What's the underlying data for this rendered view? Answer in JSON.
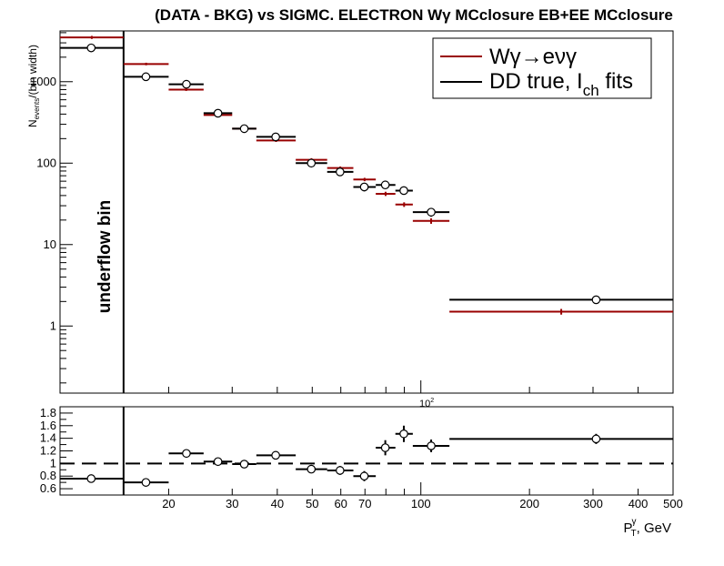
{
  "title": "(DATA - BKG) vs SIGMC. ELECTRON Wγ  MCclosure EB+EE  MCclosure",
  "chart_data": [
    {
      "type": "scatter",
      "name": "upper",
      "ylabel": "N",
      "ylabel_sub": "events",
      "ylabel_rest": "/(bin width)",
      "yscale": "log",
      "xscale": "log",
      "xlim": [
        10,
        500
      ],
      "ylim": [
        0.15,
        4200
      ],
      "y_ticks": [
        "1",
        "10",
        "100",
        "1000"
      ],
      "x_tick_label": "10",
      "x_tick_sup": "2",
      "underflow_label": "underflow bin",
      "underflow_edge": 15,
      "legend_position": "top-right",
      "legend_title_1": "Wγ→eνγ",
      "legend_title_2": "DD true, I",
      "legend_title_2_sub": "ch",
      "legend_title_2_rest": " fits",
      "series": [
        {
          "color": "#990000",
          "bins": [
            {
              "x_lo": 10,
              "x_hi": 15,
              "y": 3500,
              "err": 150
            },
            {
              "x_lo": 15,
              "x_hi": 20,
              "y": 1650,
              "err": 60
            },
            {
              "x_lo": 20,
              "x_hi": 25,
              "y": 800,
              "err": 30
            },
            {
              "x_lo": 25,
              "x_hi": 30,
              "y": 390,
              "err": 18
            },
            {
              "x_lo": 30,
              "x_hi": 35,
              "y": 265,
              "err": 12
            },
            {
              "x_lo": 35,
              "x_hi": 45,
              "y": 190,
              "err": 8
            },
            {
              "x_lo": 45,
              "x_hi": 55,
              "y": 110,
              "err": 5
            },
            {
              "x_lo": 55,
              "x_hi": 65,
              "y": 87,
              "err": 4
            },
            {
              "x_lo": 65,
              "x_hi": 75,
              "y": 63,
              "err": 3
            },
            {
              "x_lo": 75,
              "x_hi": 85,
              "y": 42,
              "err": 2.5
            },
            {
              "x_lo": 85,
              "x_hi": 95,
              "y": 31,
              "err": 2
            },
            {
              "x_lo": 95,
              "x_hi": 120,
              "y": 19.5,
              "err": 1.5
            },
            {
              "x_lo": 120,
              "x_hi": 500,
              "y": 1.5,
              "err": 0.12
            }
          ]
        },
        {
          "color": "#000000",
          "bins": [
            {
              "x_lo": 10,
              "x_hi": 15,
              "y": 2600,
              "err": 200,
              "marker_x": 12.2
            },
            {
              "x_lo": 15,
              "x_hi": 20,
              "y": 1150,
              "err": 60,
              "marker_x": 17.3
            },
            {
              "x_lo": 20,
              "x_hi": 25,
              "y": 930,
              "err": 60,
              "marker_x": 22.4
            },
            {
              "x_lo": 25,
              "x_hi": 30,
              "y": 410,
              "err": 30,
              "marker_x": 27.4
            },
            {
              "x_lo": 30,
              "x_hi": 35,
              "y": 265,
              "err": 20,
              "marker_x": 32.4
            },
            {
              "x_lo": 35,
              "x_hi": 45,
              "y": 210,
              "err": 15,
              "marker_x": 39.6
            },
            {
              "x_lo": 45,
              "x_hi": 55,
              "y": 100,
              "err": 10,
              "marker_x": 49.7
            },
            {
              "x_lo": 55,
              "x_hi": 65,
              "y": 78,
              "err": 8,
              "marker_x": 59.7
            },
            {
              "x_lo": 65,
              "x_hi": 75,
              "y": 51,
              "err": 6,
              "marker_x": 69.7
            },
            {
              "x_lo": 75,
              "x_hi": 85,
              "y": 54,
              "err": 6,
              "marker_x": 79.7
            },
            {
              "x_lo": 85,
              "x_hi": 95,
              "y": 46,
              "err": 5,
              "marker_x": 89.7
            },
            {
              "x_lo": 95,
              "x_hi": 120,
              "y": 25,
              "err": 3,
              "marker_x": 106.8
            },
            {
              "x_lo": 120,
              "x_hi": 500,
              "y": 2.1,
              "err": 0.2,
              "marker_x": 306
            }
          ]
        }
      ]
    },
    {
      "type": "scatter",
      "name": "ratio",
      "xlabel": "P",
      "xlabel_sup": "γ",
      "xlabel_sub": "T",
      "xlabel_rest": ", GeV",
      "xscale": "log",
      "xlim": [
        10,
        500
      ],
      "ylim": [
        0.5,
        1.9
      ],
      "reference_line": 1,
      "y_ticks": [
        "0.6",
        "0.8",
        "1",
        "1.2",
        "1.4",
        "1.6",
        "1.8"
      ],
      "x_ticks": [
        "20",
        "30",
        "40",
        "50",
        "60",
        "70",
        "100",
        "200",
        "300",
        "400",
        "500"
      ],
      "points": [
        {
          "x_lo": 10,
          "x_hi": 15,
          "y": 0.76,
          "err": 0.03,
          "marker_x": 12.2
        },
        {
          "x_lo": 15,
          "x_hi": 20,
          "y": 0.7,
          "err": 0.03,
          "marker_x": 17.3
        },
        {
          "x_lo": 20,
          "x_hi": 25,
          "y": 1.16,
          "err": 0.05,
          "marker_x": 22.4
        },
        {
          "x_lo": 25,
          "x_hi": 30,
          "y": 1.03,
          "err": 0.04,
          "marker_x": 27.4
        },
        {
          "x_lo": 30,
          "x_hi": 35,
          "y": 0.99,
          "err": 0.05,
          "marker_x": 32.4
        },
        {
          "x_lo": 35,
          "x_hi": 45,
          "y": 1.13,
          "err": 0.05,
          "marker_x": 39.6
        },
        {
          "x_lo": 45,
          "x_hi": 55,
          "y": 0.91,
          "err": 0.06,
          "marker_x": 49.7
        },
        {
          "x_lo": 55,
          "x_hi": 65,
          "y": 0.89,
          "err": 0.07,
          "marker_x": 59.7
        },
        {
          "x_lo": 65,
          "x_hi": 75,
          "y": 0.8,
          "err": 0.08,
          "marker_x": 69.7
        },
        {
          "x_lo": 75,
          "x_hi": 85,
          "y": 1.25,
          "err": 0.12,
          "marker_x": 79.7
        },
        {
          "x_lo": 85,
          "x_hi": 95,
          "y": 1.47,
          "err": 0.13,
          "marker_x": 89.7
        },
        {
          "x_lo": 95,
          "x_hi": 120,
          "y": 1.28,
          "err": 0.1,
          "marker_x": 106.8
        },
        {
          "x_lo": 120,
          "x_hi": 500,
          "y": 1.39,
          "err": 0.08,
          "marker_x": 306
        }
      ]
    }
  ]
}
